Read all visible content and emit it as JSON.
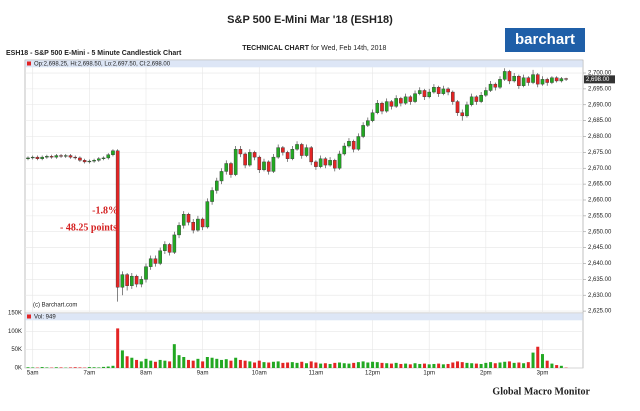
{
  "logo": "barchart",
  "footer": "Global Macro Monitor",
  "chart_data": {
    "type": "candlestick",
    "title": "S&P 500 E-Mini Mar '18 (ESH18)",
    "subtitle_bold": "TECHNICAL CHART",
    "subtitle": "for Wed, Feb 14th, 2018",
    "chart_label": "ESH18 - S&P 500 E-Mini - 5 Minute Candlestick Chart",
    "ohlc_label": "Op:2,698.25, Hi:2,698.50, Lo:2,697.50, Cl:2,698.00",
    "volume_label": "Vol: 949",
    "copyright": "(c) Barchart.com",
    "annotations": [
      "-1.8%",
      "- 48.25 points"
    ],
    "last_price_label": "2,698.00",
    "up_color": "#22a822",
    "down_color": "#e32424",
    "grid": true,
    "ylim": [
      2624.4,
      2704.1
    ],
    "yticks": [
      {
        "value": 2625,
        "label": "2,625.00"
      },
      {
        "value": 2630,
        "label": "2,630.00"
      },
      {
        "value": 2635,
        "label": "2,635.00"
      },
      {
        "value": 2640,
        "label": "2,640.00"
      },
      {
        "value": 2645,
        "label": "2,645.00"
      },
      {
        "value": 2650,
        "label": "2,650.00"
      },
      {
        "value": 2655,
        "label": "2,655.00"
      },
      {
        "value": 2660,
        "label": "2,660.00"
      },
      {
        "value": 2665,
        "label": "2,665.00"
      },
      {
        "value": 2670,
        "label": "2,670.00"
      },
      {
        "value": 2675,
        "label": "2,675.00"
      },
      {
        "value": 2680,
        "label": "2,680.00"
      },
      {
        "value": 2685,
        "label": "2,685.00"
      },
      {
        "value": 2690,
        "label": "2,690.00"
      },
      {
        "value": 2695,
        "label": "2,695.00"
      },
      {
        "value": 2700,
        "label": "2,700.00"
      }
    ],
    "volume_ylim": [
      0,
      150000
    ],
    "volume_yticks": [
      {
        "value": 0,
        "label": "0K"
      },
      {
        "value": 50000,
        "label": "50K"
      },
      {
        "value": 100000,
        "label": "100K"
      },
      {
        "value": 150000,
        "label": "150K"
      }
    ],
    "categories": [
      null,
      "5am",
      null,
      null,
      null,
      null,
      null,
      null,
      null,
      null,
      null,
      null,
      null,
      "7am",
      null,
      null,
      null,
      null,
      null,
      null,
      null,
      null,
      null,
      null,
      null,
      "8am",
      null,
      null,
      null,
      null,
      null,
      null,
      null,
      null,
      null,
      null,
      null,
      "9am",
      null,
      null,
      null,
      null,
      null,
      null,
      null,
      null,
      null,
      null,
      null,
      "10am",
      null,
      null,
      null,
      null,
      null,
      null,
      null,
      null,
      null,
      null,
      null,
      "11am",
      null,
      null,
      null,
      null,
      null,
      null,
      null,
      null,
      null,
      null,
      null,
      "12pm",
      null,
      null,
      null,
      null,
      null,
      null,
      null,
      null,
      null,
      null,
      null,
      "1pm",
      null,
      null,
      null,
      null,
      null,
      null,
      null,
      null,
      null,
      null,
      null,
      "2pm",
      null,
      null,
      null,
      null,
      null,
      null,
      null,
      null,
      null,
      null,
      null,
      "3pm",
      null,
      null,
      null,
      null,
      null
    ],
    "open": [
      2673.0,
      2673.25,
      2673.5,
      2673.0,
      2673.5,
      2673.75,
      2673.5,
      2674.0,
      2673.75,
      2674.0,
      2673.5,
      2673.25,
      2672.5,
      2672.0,
      2672.25,
      2672.5,
      2673.0,
      2673.25,
      2674.25,
      2675.5,
      2632.5,
      2636.5,
      2633.0,
      2636.0,
      2633.5,
      2635.0,
      2639.0,
      2641.5,
      2640.0,
      2644.0,
      2646.0,
      2643.5,
      2649.0,
      2652.0,
      2655.5,
      2653.0,
      2650.5,
      2654.0,
      2651.5,
      2659.5,
      2663.0,
      2666.0,
      2669.0,
      2671.5,
      2668.0,
      2676.0,
      2674.5,
      2671.0,
      2675.0,
      2673.5,
      2669.5,
      2672.0,
      2669.0,
      2673.5,
      2676.5,
      2675.0,
      2673.0,
      2676.0,
      2677.5,
      2674.0,
      2676.5,
      2672.0,
      2670.5,
      2673.0,
      2671.0,
      2672.5,
      2670.0,
      2674.5,
      2677.0,
      2678.5,
      2676.0,
      2680.0,
      2683.5,
      2685.0,
      2687.5,
      2690.5,
      2688.0,
      2691.0,
      2689.5,
      2692.0,
      2690.5,
      2692.5,
      2691.0,
      2693.5,
      2694.5,
      2692.5,
      2694.0,
      2695.5,
      2693.5,
      2695.0,
      2694.0,
      2691.0,
      2687.5,
      2686.5,
      2690.0,
      2692.5,
      2691.0,
      2693.0,
      2694.5,
      2696.5,
      2695.5,
      2698.0,
      2700.5,
      2697.5,
      2699.0,
      2696.0,
      2698.5,
      2697.0,
      2699.5,
      2696.5,
      2698.0,
      2697.0,
      2698.5,
      2697.5,
      2698.25
    ],
    "high": [
      2673.75,
      2674.0,
      2674.0,
      2674.0,
      2674.25,
      2674.25,
      2674.5,
      2674.5,
      2674.5,
      2674.5,
      2674.0,
      2673.75,
      2673.0,
      2672.75,
      2673.0,
      2673.5,
      2673.75,
      2674.75,
      2676.0,
      2676.0,
      2637.5,
      2637.0,
      2637.0,
      2636.5,
      2636.0,
      2640.0,
      2642.5,
      2642.5,
      2645.0,
      2647.0,
      2646.5,
      2650.0,
      2653.0,
      2656.5,
      2656.0,
      2654.0,
      2655.0,
      2654.5,
      2660.5,
      2664.0,
      2667.0,
      2670.0,
      2672.5,
      2672.0,
      2677.0,
      2677.0,
      2675.0,
      2676.0,
      2675.5,
      2674.0,
      2673.0,
      2672.5,
      2674.5,
      2677.5,
      2677.0,
      2675.5,
      2677.0,
      2678.5,
      2678.0,
      2677.5,
      2677.0,
      2672.5,
      2674.0,
      2673.5,
      2673.5,
      2673.0,
      2675.5,
      2678.0,
      2679.5,
      2679.0,
      2681.0,
      2684.5,
      2686.0,
      2688.5,
      2691.5,
      2691.0,
      2692.0,
      2691.5,
      2693.0,
      2692.5,
      2693.5,
      2693.0,
      2694.5,
      2695.5,
      2695.0,
      2695.0,
      2696.5,
      2696.0,
      2696.0,
      2695.5,
      2694.5,
      2691.5,
      2688.5,
      2691.0,
      2693.5,
      2693.0,
      2694.0,
      2695.5,
      2697.5,
      2697.0,
      2699.0,
      2701.5,
      2701.0,
      2700.0,
      2699.5,
      2699.5,
      2699.0,
      2701.0,
      2700.0,
      2699.0,
      2698.5,
      2699.0,
      2699.0,
      2698.75,
      2698.5
    ],
    "low": [
      2672.5,
      2672.75,
      2672.5,
      2672.5,
      2673.0,
      2673.0,
      2673.0,
      2673.25,
      2673.25,
      2673.0,
      2672.75,
      2672.0,
      2671.5,
      2671.5,
      2671.75,
      2672.0,
      2672.5,
      2672.75,
      2673.75,
      2628.0,
      2630.0,
      2631.5,
      2632.0,
      2632.5,
      2632.5,
      2634.0,
      2638.0,
      2639.0,
      2639.5,
      2643.0,
      2642.5,
      2643.0,
      2648.0,
      2651.0,
      2652.0,
      2649.5,
      2650.0,
      2650.5,
      2651.0,
      2658.5,
      2662.0,
      2665.0,
      2668.0,
      2667.0,
      2667.5,
      2673.5,
      2670.0,
      2670.5,
      2672.5,
      2668.5,
      2669.0,
      2668.0,
      2668.5,
      2673.0,
      2674.0,
      2672.0,
      2672.5,
      2675.5,
      2673.0,
      2673.5,
      2671.0,
      2669.5,
      2670.0,
      2670.0,
      2670.5,
      2669.0,
      2669.5,
      2674.0,
      2676.5,
      2675.0,
      2675.5,
      2679.5,
      2683.0,
      2684.5,
      2687.0,
      2687.0,
      2687.5,
      2688.5,
      2689.0,
      2689.5,
      2690.0,
      2690.0,
      2690.5,
      2693.0,
      2691.5,
      2692.0,
      2693.5,
      2692.5,
      2693.0,
      2693.0,
      2690.0,
      2686.5,
      2685.0,
      2686.0,
      2689.5,
      2690.0,
      2690.5,
      2692.5,
      2694.0,
      2694.5,
      2695.0,
      2697.5,
      2696.5,
      2697.0,
      2695.0,
      2695.5,
      2696.0,
      2696.5,
      2695.5,
      2696.0,
      2696.0,
      2696.5,
      2697.0,
      2697.0,
      2697.5
    ],
    "close": [
      2673.25,
      2673.5,
      2673.0,
      2673.5,
      2673.75,
      2673.5,
      2674.0,
      2673.75,
      2674.0,
      2673.5,
      2673.25,
      2672.5,
      2672.0,
      2672.25,
      2672.5,
      2673.0,
      2673.25,
      2674.25,
      2675.5,
      2632.5,
      2636.5,
      2633.0,
      2636.0,
      2633.5,
      2635.0,
      2639.0,
      2641.5,
      2640.0,
      2644.0,
      2646.0,
      2643.5,
      2649.0,
      2652.0,
      2655.5,
      2653.0,
      2650.5,
      2654.0,
      2651.5,
      2659.5,
      2663.0,
      2666.0,
      2669.0,
      2671.5,
      2668.0,
      2676.0,
      2674.5,
      2671.0,
      2675.0,
      2673.5,
      2669.5,
      2672.0,
      2669.0,
      2673.5,
      2676.5,
      2675.0,
      2673.0,
      2676.0,
      2677.5,
      2674.0,
      2676.5,
      2672.0,
      2670.5,
      2673.0,
      2671.0,
      2672.5,
      2670.0,
      2674.5,
      2677.0,
      2678.5,
      2676.0,
      2680.0,
      2683.5,
      2685.0,
      2687.5,
      2690.5,
      2688.0,
      2691.0,
      2689.5,
      2692.0,
      2690.5,
      2692.5,
      2691.0,
      2693.5,
      2694.5,
      2692.5,
      2694.0,
      2695.5,
      2693.5,
      2695.0,
      2694.0,
      2691.0,
      2687.5,
      2686.5,
      2690.0,
      2692.5,
      2691.0,
      2693.0,
      2694.5,
      2696.5,
      2695.5,
      2698.0,
      2700.5,
      2697.5,
      2699.0,
      2696.0,
      2698.5,
      2697.0,
      2699.5,
      2696.5,
      2698.0,
      2697.0,
      2698.5,
      2697.5,
      2698.25,
      2698.0
    ],
    "volume": [
      2000,
      1500,
      1000,
      2500,
      1500,
      1000,
      2000,
      1500,
      1000,
      1500,
      2000,
      1500,
      1000,
      2500,
      2000,
      1500,
      3000,
      4000,
      6000,
      108000,
      48000,
      32000,
      28000,
      22000,
      18000,
      25000,
      20000,
      17000,
      22000,
      20000,
      18000,
      65000,
      35000,
      30000,
      22000,
      20000,
      25000,
      18000,
      30000,
      28000,
      25000,
      22000,
      24000,
      20000,
      28000,
      22000,
      20000,
      18000,
      15000,
      20000,
      16000,
      15000,
      17000,
      18000,
      14000,
      15000,
      16000,
      14000,
      17000,
      13000,
      18000,
      15000,
      12000,
      13000,
      11000,
      14000,
      15000,
      13000,
      12000,
      14000,
      16000,
      18000,
      15000,
      17000,
      16000,
      14000,
      13000,
      12000,
      14000,
      11000,
      12000,
      10000,
      13000,
      11000,
      12000,
      10000,
      11000,
      12000,
      10000,
      11000,
      15000,
      18000,
      16000,
      14000,
      13000,
      12000,
      11000,
      14000,
      16000,
      13000,
      15000,
      17000,
      18000,
      14000,
      15000,
      13000,
      16000,
      42000,
      58000,
      38000,
      20000,
      12000,
      8000,
      6000,
      949
    ]
  }
}
